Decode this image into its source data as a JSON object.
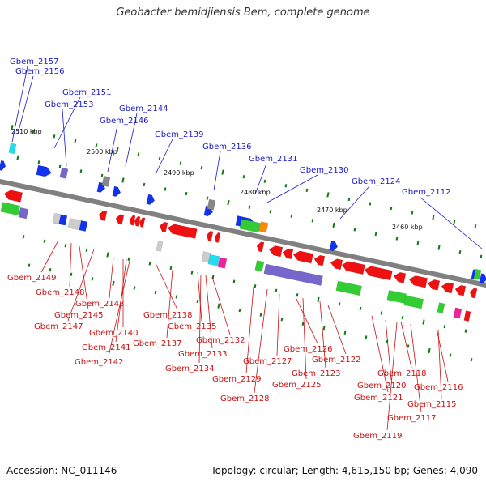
{
  "title": "Geobacter bemidjiensis Bem, complete genome",
  "footer": {
    "accession": "Accession: NC_011146",
    "stats": "Topology: circular; Length: 4,615,150 bp; Genes: 4,090"
  },
  "colors": {
    "backbone": "#808080",
    "red": "#ee1111",
    "blue": "#1133ee",
    "green": "#33cc33",
    "purple": "#7766cc",
    "cyan": "#22ddee",
    "magenta": "#ee2299",
    "orange": "#ff8800",
    "gray": "#888888",
    "lightgray": "#cccccc",
    "tick": "#117711",
    "label_blue": "#1a1acc",
    "label_red": "#cc1111"
  },
  "scale_labels": [
    "2510 kbp",
    "2500 kbp",
    "2490 kbp",
    "2480 kbp",
    "2470 kbp",
    "2460 kbp"
  ],
  "top_labels": [
    "Gbem_2157",
    "Gbem_2156",
    "Gbem_2151",
    "Gbem_2153",
    "Gbem_2144",
    "Gbem_2146",
    "Gbem_2139",
    "Gbem_2136",
    "Gbem_2131",
    "Gbem_2130",
    "Gbem_2124",
    "Gbem_2112"
  ],
  "bottom_labels": [
    "Gbem_2149",
    "Gbem_2148",
    "Gbem_2145",
    "Gbem_2147",
    "Gbem_2143",
    "Gbem_2140",
    "Gbem_2141",
    "Gbem_2142",
    "Gbem_2138",
    "Gbem_2137",
    "Gbem_2135",
    "Gbem_2132",
    "Gbem_2133",
    "Gbem_2134",
    "Gbem_2129",
    "Gbem_2128",
    "Gbem_2127",
    "Gbem_2126",
    "Gbem_2125",
    "Gbem_2123",
    "Gbem_2122",
    "Gbem_2121",
    "Gbem_2120",
    "Gbem_2119",
    "Gbem_2118",
    "Gbem_2117",
    "Gbem_2116",
    "Gbem_2115"
  ]
}
